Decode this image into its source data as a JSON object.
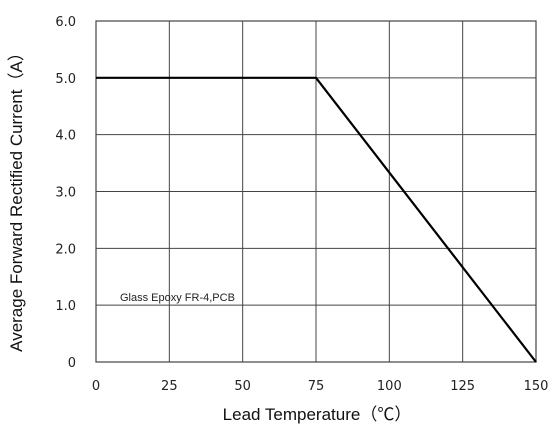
{
  "chart_data": {
    "type": "line",
    "title": "",
    "xlabel": "Lead Temperature（℃）",
    "ylabel": "Average Forward Rectified Current（A）",
    "xlim": [
      0,
      150
    ],
    "ylim": [
      0,
      6
    ],
    "x_ticks": [
      0,
      25,
      50,
      75,
      100,
      125,
      150
    ],
    "x_tick_labels": [
      "0",
      "25",
      "50",
      "75",
      "100",
      "125",
      "150"
    ],
    "y_ticks": [
      0,
      1,
      2,
      3,
      4,
      5,
      6
    ],
    "y_tick_labels": [
      "0",
      "1.0",
      "2.0",
      "3.0",
      "4.0",
      "5.0",
      "6.0"
    ],
    "grid": true,
    "series": [
      {
        "x": [
          0,
          75,
          150
        ],
        "values": [
          5.0,
          5.0,
          0
        ]
      }
    ],
    "annotation": "Glass Epoxy FR-4,PCB",
    "line_color": "#000000",
    "grid_color": "#444444"
  }
}
